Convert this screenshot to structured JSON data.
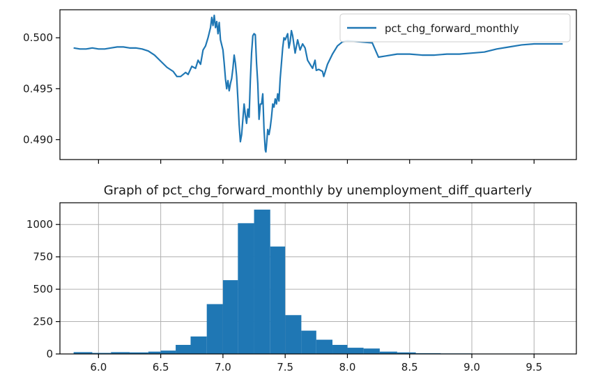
{
  "chart_data": [
    {
      "type": "line",
      "title": "",
      "xlabel": "",
      "ylabel": "",
      "legend": {
        "placement": "top-right",
        "entries": [
          "pct_chg_forward_monthly"
        ]
      },
      "series": [
        {
          "name": "pct_chg_forward_monthly",
          "color": "#1f77b4",
          "points": [
            [
              5.8,
              0.499
            ],
            [
              5.85,
              0.4989
            ],
            [
              5.9,
              0.4989
            ],
            [
              5.95,
              0.499
            ],
            [
              6.0,
              0.4989
            ],
            [
              6.05,
              0.4989
            ],
            [
              6.1,
              0.499
            ],
            [
              6.15,
              0.4991
            ],
            [
              6.2,
              0.4991
            ],
            [
              6.25,
              0.499
            ],
            [
              6.3,
              0.499
            ],
            [
              6.35,
              0.4989
            ],
            [
              6.4,
              0.4987
            ],
            [
              6.45,
              0.4983
            ],
            [
              6.5,
              0.4977
            ],
            [
              6.55,
              0.4971
            ],
            [
              6.6,
              0.4967
            ],
            [
              6.63,
              0.4962
            ],
            [
              6.66,
              0.4962
            ],
            [
              6.7,
              0.4966
            ],
            [
              6.72,
              0.4964
            ],
            [
              6.75,
              0.4972
            ],
            [
              6.78,
              0.497
            ],
            [
              6.8,
              0.4978
            ],
            [
              6.82,
              0.4974
            ],
            [
              6.84,
              0.4988
            ],
            [
              6.86,
              0.4992
            ],
            [
              6.88,
              0.5
            ],
            [
              6.9,
              0.501
            ],
            [
              6.91,
              0.502
            ],
            [
              6.92,
              0.5012
            ],
            [
              6.93,
              0.5022
            ],
            [
              6.94,
              0.501
            ],
            [
              6.95,
              0.5016
            ],
            [
              6.96,
              0.5004
            ],
            [
              6.97,
              0.5015
            ],
            [
              6.98,
              0.4998
            ],
            [
              7.0,
              0.4988
            ],
            [
              7.01,
              0.4975
            ],
            [
              7.02,
              0.496
            ],
            [
              7.03,
              0.495
            ],
            [
              7.04,
              0.4958
            ],
            [
              7.05,
              0.4948
            ],
            [
              7.06,
              0.4955
            ],
            [
              7.07,
              0.496
            ],
            [
              7.08,
              0.497
            ],
            [
              7.09,
              0.4983
            ],
            [
              7.1,
              0.4975
            ],
            [
              7.11,
              0.4962
            ],
            [
              7.12,
              0.494
            ],
            [
              7.13,
              0.4915
            ],
            [
              7.14,
              0.4898
            ],
            [
              7.15,
              0.4905
            ],
            [
              7.16,
              0.492
            ],
            [
              7.17,
              0.4935
            ],
            [
              7.18,
              0.4924
            ],
            [
              7.19,
              0.4916
            ],
            [
              7.2,
              0.493
            ],
            [
              7.21,
              0.4922
            ],
            [
              7.22,
              0.4958
            ],
            [
              7.23,
              0.4985
            ],
            [
              7.24,
              0.5002
            ],
            [
              7.25,
              0.5004
            ],
            [
              7.26,
              0.5003
            ],
            [
              7.27,
              0.4975
            ],
            [
              7.28,
              0.4955
            ],
            [
              7.29,
              0.492
            ],
            [
              7.3,
              0.4935
            ],
            [
              7.31,
              0.4935
            ],
            [
              7.32,
              0.4945
            ],
            [
              7.33,
              0.491
            ],
            [
              7.34,
              0.489
            ],
            [
              7.345,
              0.4888
            ],
            [
              7.35,
              0.4895
            ],
            [
              7.36,
              0.491
            ],
            [
              7.37,
              0.4905
            ],
            [
              7.38,
              0.4912
            ],
            [
              7.39,
              0.4922
            ],
            [
              7.4,
              0.4935
            ],
            [
              7.41,
              0.4932
            ],
            [
              7.42,
              0.494
            ],
            [
              7.43,
              0.4935
            ],
            [
              7.44,
              0.4945
            ],
            [
              7.45,
              0.4938
            ],
            [
              7.46,
              0.496
            ],
            [
              7.47,
              0.4975
            ],
            [
              7.48,
              0.499
            ],
            [
              7.49,
              0.5
            ],
            [
              7.5,
              0.4998
            ],
            [
              7.52,
              0.5004
            ],
            [
              7.53,
              0.499
            ],
            [
              7.54,
              0.4996
            ],
            [
              7.55,
              0.5007
            ],
            [
              7.56,
              0.5002
            ],
            [
              7.58,
              0.4985
            ],
            [
              7.6,
              0.4998
            ],
            [
              7.62,
              0.4988
            ],
            [
              7.64,
              0.4994
            ],
            [
              7.66,
              0.499
            ],
            [
              7.68,
              0.4978
            ],
            [
              7.7,
              0.4974
            ],
            [
              7.72,
              0.497
            ],
            [
              7.74,
              0.4978
            ],
            [
              7.75,
              0.4968
            ],
            [
              7.77,
              0.4969
            ],
            [
              7.8,
              0.4967
            ],
            [
              7.81,
              0.4962
            ],
            [
              7.84,
              0.4974
            ],
            [
              7.88,
              0.4984
            ],
            [
              7.92,
              0.4992
            ],
            [
              7.96,
              0.4996
            ],
            [
              8.0,
              0.4997
            ],
            [
              8.1,
              0.4996
            ],
            [
              8.2,
              0.4995
            ],
            [
              8.25,
              0.4981
            ],
            [
              8.3,
              0.4982
            ],
            [
              8.4,
              0.4984
            ],
            [
              8.5,
              0.4984
            ],
            [
              8.6,
              0.4983
            ],
            [
              8.7,
              0.4983
            ],
            [
              8.8,
              0.4984
            ],
            [
              8.9,
              0.4984
            ],
            [
              9.0,
              0.4985
            ],
            [
              9.1,
              0.4986
            ],
            [
              9.2,
              0.4989
            ],
            [
              9.3,
              0.4991
            ],
            [
              9.4,
              0.4993
            ],
            [
              9.5,
              0.4994
            ],
            [
              9.6,
              0.4994
            ],
            [
              9.7,
              0.4994
            ],
            [
              9.73,
              0.4994
            ]
          ]
        }
      ],
      "xlim": [
        5.69,
        9.84
      ],
      "ylim": [
        0.48805,
        0.50275
      ],
      "yticks": [
        0.49,
        0.495,
        0.5
      ],
      "ytick_labels": [
        "0.490",
        "0.495",
        "0.500"
      ],
      "x_tick_labels_shown": false,
      "grid": false
    },
    {
      "type": "bar",
      "title": "Graph of pct_chg_forward_monthly by unemployment_diff_quarterly",
      "xlabel": "",
      "ylabel": "",
      "color": "#1f77b4",
      "bins": [
        {
          "x0": 5.8,
          "x1": 5.95,
          "value": 14
        },
        {
          "x0": 5.95,
          "x1": 6.1,
          "value": 8
        },
        {
          "x0": 6.1,
          "x1": 6.25,
          "value": 14
        },
        {
          "x0": 6.25,
          "x1": 6.4,
          "value": 12
        },
        {
          "x0": 6.4,
          "x1": 6.5,
          "value": 18
        },
        {
          "x0": 6.5,
          "x1": 6.62,
          "value": 26
        },
        {
          "x0": 6.62,
          "x1": 6.74,
          "value": 70
        },
        {
          "x0": 6.74,
          "x1": 6.87,
          "value": 135
        },
        {
          "x0": 6.87,
          "x1": 7.0,
          "value": 385
        },
        {
          "x0": 7.0,
          "x1": 7.12,
          "value": 570
        },
        {
          "x0": 7.12,
          "x1": 7.25,
          "value": 1010
        },
        {
          "x0": 7.25,
          "x1": 7.38,
          "value": 1115
        },
        {
          "x0": 7.38,
          "x1": 7.5,
          "value": 830
        },
        {
          "x0": 7.5,
          "x1": 7.63,
          "value": 300
        },
        {
          "x0": 7.63,
          "x1": 7.75,
          "value": 180
        },
        {
          "x0": 7.75,
          "x1": 7.88,
          "value": 110
        },
        {
          "x0": 7.88,
          "x1": 8.0,
          "value": 70
        },
        {
          "x0": 8.0,
          "x1": 8.13,
          "value": 48
        },
        {
          "x0": 8.13,
          "x1": 8.26,
          "value": 42
        },
        {
          "x0": 8.26,
          "x1": 8.4,
          "value": 18
        },
        {
          "x0": 8.4,
          "x1": 8.55,
          "value": 12
        },
        {
          "x0": 8.55,
          "x1": 8.75,
          "value": 6
        },
        {
          "x0": 8.75,
          "x1": 9.0,
          "value": 4
        },
        {
          "x0": 9.0,
          "x1": 9.3,
          "value": 3
        },
        {
          "x0": 9.3,
          "x1": 9.55,
          "value": 3
        },
        {
          "x0": 9.55,
          "x1": 9.74,
          "value": 2
        }
      ],
      "xlim": [
        5.69,
        9.84
      ],
      "ylim": [
        0,
        1168
      ],
      "xticks": [
        6.0,
        6.5,
        7.0,
        7.5,
        8.0,
        8.5,
        9.0,
        9.5
      ],
      "xtick_labels": [
        "6.0",
        "6.5",
        "7.0",
        "7.5",
        "8.0",
        "8.5",
        "9.0",
        "9.5"
      ],
      "yticks": [
        0,
        250,
        500,
        750,
        1000
      ],
      "ytick_labels": [
        "0",
        "250",
        "500",
        "750",
        "1000"
      ],
      "grid": true
    }
  ]
}
